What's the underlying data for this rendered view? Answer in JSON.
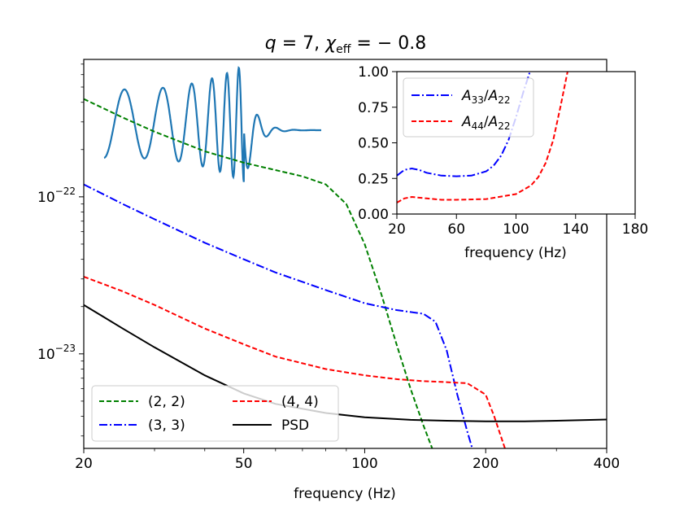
{
  "chart_data": [
    {
      "type": "line",
      "title_parts": {
        "q": "q",
        "q_eq": " = 7, ",
        "chi": "χ",
        "chi_sub": "eff",
        "chi_eq": " = − 0.8"
      },
      "title_text": "q = 7, χ_eff = −0.8",
      "xlabel": "frequency (Hz)",
      "ylabel": "",
      "xscale": "log",
      "yscale": "log",
      "xlim": [
        20,
        400
      ],
      "ylim": [
        2.5e-24,
        7.5e-22
      ],
      "xticks": [
        {
          "value": 20,
          "label": "20"
        },
        {
          "value": 50,
          "label": "50"
        },
        {
          "value": 100,
          "label": "100"
        },
        {
          "value": 200,
          "label": "200"
        },
        {
          "value": 400,
          "label": "400"
        }
      ],
      "yticks": [
        {
          "value": 1e-22,
          "base": "10",
          "exp": "−22"
        },
        {
          "value": 1e-23,
          "base": "10",
          "exp": "−23"
        }
      ],
      "legend_position": "lower-left",
      "series": [
        {
          "name": "(2, 2)",
          "color": "#008000",
          "dash": "dashed",
          "x": [
            20,
            25,
            30,
            40,
            50,
            60,
            70,
            80,
            90,
            100,
            110,
            120,
            130,
            140,
            150
          ],
          "y": [
            4.2e-22,
            3.2e-22,
            2.6e-22,
            1.95e-22,
            1.65e-22,
            1.48e-22,
            1.35e-22,
            1.2e-22,
            9e-23,
            5e-23,
            2.4e-23,
            1.15e-23,
            6e-24,
            3.5e-24,
            2.2e-24
          ]
        },
        {
          "name": "(3, 3)",
          "color": "#0000ff",
          "dash": "dashdot",
          "x": [
            20,
            25,
            30,
            40,
            50,
            60,
            80,
            100,
            120,
            140,
            150,
            160,
            170,
            180,
            190
          ],
          "y": [
            1.2e-22,
            9e-23,
            7.2e-23,
            5.1e-23,
            4e-23,
            3.3e-23,
            2.55e-23,
            2.1e-23,
            1.9e-23,
            1.8e-23,
            1.6e-23,
            1.05e-23,
            5.5e-24,
            3.2e-24,
            2e-24
          ]
        },
        {
          "name": "(4, 4)",
          "color": "#ff0000",
          "dash": "dashed",
          "x": [
            20,
            25,
            30,
            40,
            50,
            60,
            80,
            100,
            120,
            140,
            160,
            180,
            200,
            210,
            220,
            230
          ],
          "y": [
            3.1e-23,
            2.5e-23,
            2.05e-23,
            1.45e-23,
            1.15e-23,
            9.6e-24,
            8e-24,
            7.3e-24,
            6.9e-24,
            6.7e-24,
            6.6e-24,
            6.5e-24,
            5.5e-24,
            4e-24,
            2.8e-24,
            2e-24
          ]
        },
        {
          "name": "PSD",
          "color": "#000000",
          "dash": "solid",
          "x": [
            20,
            25,
            30,
            40,
            50,
            60,
            80,
            100,
            130,
            160,
            200,
            250,
            300,
            400
          ],
          "y": [
            2.05e-23,
            1.45e-23,
            1.1e-23,
            7.3e-24,
            5.6e-24,
            4.8e-24,
            4.2e-24,
            3.95e-24,
            3.8e-24,
            3.75e-24,
            3.72e-24,
            3.72e-24,
            3.75e-24,
            3.82e-24
          ]
        }
      ]
    },
    {
      "type": "line",
      "title": "",
      "xlabel": "frequency (Hz)",
      "xlim": [
        20,
        180
      ],
      "ylim": [
        0,
        1
      ],
      "xticks": [
        20,
        60,
        100,
        140,
        180
      ],
      "yticks": [
        "0.00",
        "0.25",
        "0.50",
        "0.75",
        "1.00"
      ],
      "legend_position": "top-left",
      "series": [
        {
          "name": "A33/A22",
          "label_main": "A",
          "sub1": "33",
          "sub2": "22",
          "color": "#0000ff",
          "dash": "dashdot",
          "x": [
            20,
            25,
            30,
            35,
            40,
            50,
            60,
            70,
            80,
            85,
            90,
            95,
            100,
            105,
            110
          ],
          "y": [
            0.27,
            0.31,
            0.32,
            0.31,
            0.29,
            0.27,
            0.265,
            0.27,
            0.3,
            0.34,
            0.41,
            0.52,
            0.68,
            0.86,
            1.02
          ]
        },
        {
          "name": "A44/A22",
          "label_main": "A",
          "sub1": "44",
          "sub2": "22",
          "color": "#ff0000",
          "dash": "dashed",
          "x": [
            20,
            25,
            30,
            40,
            50,
            60,
            80,
            100,
            110,
            115,
            120,
            125,
            130,
            135
          ],
          "y": [
            0.08,
            0.11,
            0.12,
            0.11,
            0.1,
            0.1,
            0.105,
            0.14,
            0.2,
            0.26,
            0.36,
            0.52,
            0.76,
            1.02
          ]
        }
      ]
    }
  ]
}
